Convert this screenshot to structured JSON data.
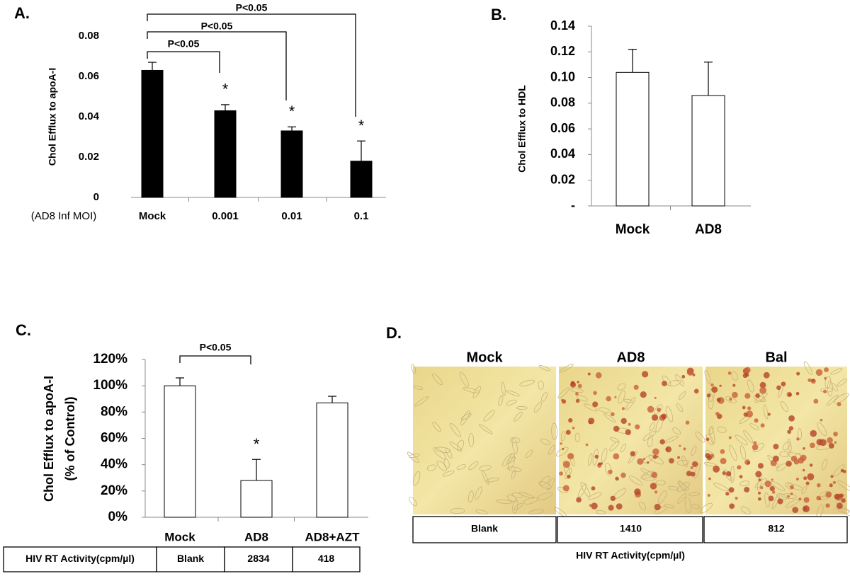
{
  "chart_data": [
    {
      "type": "bar",
      "title": "A.",
      "y_label": "Chol Efflux to apoA-I",
      "x_prefix": "(AD8 Inf MOI)",
      "categories": [
        "Mock",
        "0.001",
        "0.01",
        "0.1"
      ],
      "values": [
        0.063,
        0.043,
        0.033,
        0.018
      ],
      "errors": [
        0.004,
        0.003,
        0.002,
        0.01
      ],
      "color": "#000000",
      "ylim": [
        0,
        0.08
      ],
      "yticks": [
        0,
        0.02,
        0.04,
        0.06,
        0.08
      ],
      "markers": [
        null,
        "*",
        "*",
        "*"
      ],
      "comparisons": [
        "P<0.05",
        "P<0.05",
        "P<0.05"
      ]
    },
    {
      "type": "bar",
      "title": "B.",
      "y_label": "Chol  Efflux to HDL",
      "categories": [
        "Mock",
        "AD8"
      ],
      "values": [
        0.104,
        0.086
      ],
      "errors": [
        0.018,
        0.026
      ],
      "color": "#ffffff",
      "ylim": [
        0,
        0.14
      ],
      "yticks": [
        {
          "value": 0,
          "label": "-"
        },
        0.02,
        0.04,
        0.06,
        0.08,
        {
          "value": 0.1,
          "label": "0.10"
        },
        0.12,
        0.14
      ]
    },
    {
      "type": "bar",
      "title": "C.",
      "y_label": [
        "Chol Efflux to apoA-I",
        "(% of Control)"
      ],
      "categories": [
        "Mock",
        "AD8",
        "AD8+AZT"
      ],
      "values": [
        100,
        28,
        87
      ],
      "errors": [
        6,
        16,
        5
      ],
      "color": "#ffffff",
      "ylim": [
        0,
        120
      ],
      "yticks": [
        {
          "value": 0,
          "label": "0%"
        },
        {
          "value": 20,
          "label": "20%"
        },
        {
          "value": 40,
          "label": "40%"
        },
        {
          "value": 60,
          "label": "60%"
        },
        {
          "value": 80,
          "label": "80%"
        },
        {
          "value": 100,
          "label": "100%"
        },
        {
          "value": 120,
          "label": "120%"
        }
      ],
      "markers": [
        null,
        "*",
        null
      ],
      "comparisons": [
        "P<0.05"
      ],
      "table": {
        "header": "HIV RT Activity(cpm/µl)",
        "cells": [
          "Blank",
          "2834",
          "418"
        ]
      }
    }
  ],
  "panel_d": {
    "title": "D.",
    "images": [
      "Mock",
      "AD8",
      "Bal"
    ],
    "cells": [
      "Blank",
      "1410",
      "812"
    ],
    "caption": "HIV RT Activity(cpm/µl)"
  }
}
